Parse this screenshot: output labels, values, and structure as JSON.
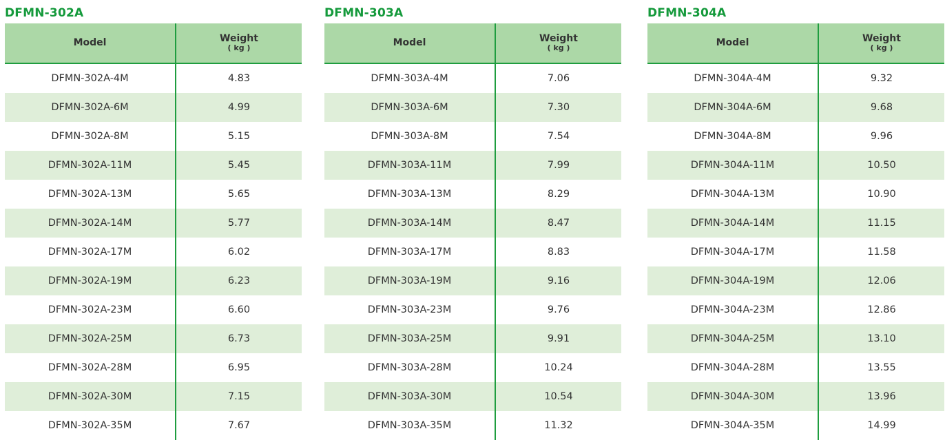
{
  "tables": [
    {
      "title": "DFMN-302A",
      "header": {
        "model": "Model",
        "weight": "Weight",
        "unit": "( kg )"
      },
      "rows": [
        {
          "model": "DFMN-302A-4M",
          "weight": "4.83"
        },
        {
          "model": "DFMN-302A-6M",
          "weight": "4.99"
        },
        {
          "model": "DFMN-302A-8M",
          "weight": "5.15"
        },
        {
          "model": "DFMN-302A-11M",
          "weight": "5.45"
        },
        {
          "model": "DFMN-302A-13M",
          "weight": "5.65"
        },
        {
          "model": "DFMN-302A-14M",
          "weight": "5.77"
        },
        {
          "model": "DFMN-302A-17M",
          "weight": "6.02"
        },
        {
          "model": "DFMN-302A-19M",
          "weight": "6.23"
        },
        {
          "model": "DFMN-302A-23M",
          "weight": "6.60"
        },
        {
          "model": "DFMN-302A-25M",
          "weight": "6.73"
        },
        {
          "model": "DFMN-302A-28M",
          "weight": "6.95"
        },
        {
          "model": "DFMN-302A-30M",
          "weight": "7.15"
        },
        {
          "model": "DFMN-302A-35M",
          "weight": "7.67"
        }
      ]
    },
    {
      "title": "DFMN-303A",
      "header": {
        "model": "Model",
        "weight": "Weight",
        "unit": "( kg )"
      },
      "rows": [
        {
          "model": "DFMN-303A-4M",
          "weight": "7.06"
        },
        {
          "model": "DFMN-303A-6M",
          "weight": "7.30"
        },
        {
          "model": "DFMN-303A-8M",
          "weight": "7.54"
        },
        {
          "model": "DFMN-303A-11M",
          "weight": "7.99"
        },
        {
          "model": "DFMN-303A-13M",
          "weight": "8.29"
        },
        {
          "model": "DFMN-303A-14M",
          "weight": "8.47"
        },
        {
          "model": "DFMN-303A-17M",
          "weight": "8.83"
        },
        {
          "model": "DFMN-303A-19M",
          "weight": "9.16"
        },
        {
          "model": "DFMN-303A-23M",
          "weight": "9.76"
        },
        {
          "model": "DFMN-303A-25M",
          "weight": "9.91"
        },
        {
          "model": "DFMN-303A-28M",
          "weight": "10.24"
        },
        {
          "model": "DFMN-303A-30M",
          "weight": "10.54"
        },
        {
          "model": "DFMN-303A-35M",
          "weight": "11.32"
        }
      ]
    },
    {
      "title": "DFMN-304A",
      "header": {
        "model": "Model",
        "weight": "Weight",
        "unit": "( kg )"
      },
      "rows": [
        {
          "model": "DFMN-304A-4M",
          "weight": "9.32"
        },
        {
          "model": "DFMN-304A-6M",
          "weight": "9.68"
        },
        {
          "model": "DFMN-304A-8M",
          "weight": "9.96"
        },
        {
          "model": "DFMN-304A-11M",
          "weight": "10.50"
        },
        {
          "model": "DFMN-304A-13M",
          "weight": "10.90"
        },
        {
          "model": "DFMN-304A-14M",
          "weight": "11.15"
        },
        {
          "model": "DFMN-304A-17M",
          "weight": "11.58"
        },
        {
          "model": "DFMN-304A-19M",
          "weight": "12.06"
        },
        {
          "model": "DFMN-304A-23M",
          "weight": "12.86"
        },
        {
          "model": "DFMN-304A-25M",
          "weight": "13.10"
        },
        {
          "model": "DFMN-304A-28M",
          "weight": "13.55"
        },
        {
          "model": "DFMN-304A-30M",
          "weight": "13.96"
        },
        {
          "model": "DFMN-304A-35M",
          "weight": "14.99"
        }
      ]
    }
  ],
  "colors": {
    "title": "#159a3c",
    "header_bg": "#acd8a7",
    "stripe_bg": "#dfeed9",
    "rule": "#1f9d3f",
    "text": "#333333"
  }
}
